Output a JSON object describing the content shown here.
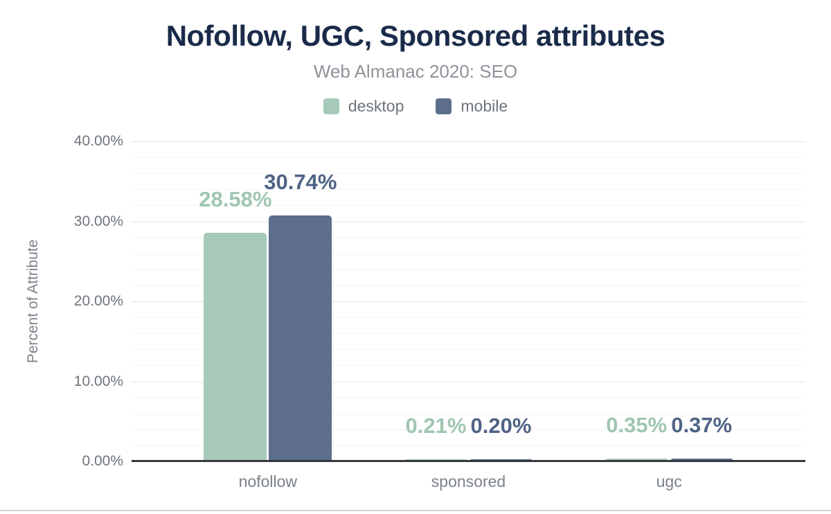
{
  "header": {
    "title": "Nofollow, UGC, Sponsored attributes",
    "subtitle": "Web Almanac 2020: SEO"
  },
  "chart_data": {
    "type": "bar",
    "title": "Nofollow, UGC, Sponsored attributes",
    "subtitle": "Web Almanac 2020: SEO",
    "categories": [
      "nofollow",
      "sponsored",
      "ugc"
    ],
    "series": [
      {
        "name": "desktop",
        "color": "#a7cab8",
        "label_color": "#9fc6b1",
        "values": [
          28.58,
          0.21,
          0.35
        ]
      },
      {
        "name": "mobile",
        "color": "#5c6e8c",
        "label_color": "#4f6385",
        "values": [
          30.74,
          0.2,
          0.37
        ]
      }
    ],
    "xlabel": "",
    "ylabel": "Percent of Attribute",
    "ylim": [
      0,
      40
    ],
    "y_major_step": 10,
    "y_minor_step": 2,
    "y_tick_labels": [
      "0.00%",
      "10.00%",
      "20.00%",
      "30.00%",
      "40.00%"
    ],
    "value_label_format": "2-decimal percent",
    "grid": true,
    "legend_position": "top"
  },
  "theme": {
    "title_color": "#1a2b4a",
    "subtitle_color": "#8e939a",
    "legend_text_color": "#6f757d",
    "axis_text_color": "#6f757d",
    "category_text_color": "#7b818a",
    "grid_major_color": "#e5e5e5",
    "grid_minor_color": "#f4f4f4",
    "axis_line_color": "#35393d",
    "divider_color": "#d3d5d7",
    "background_color": "#ffffff"
  }
}
